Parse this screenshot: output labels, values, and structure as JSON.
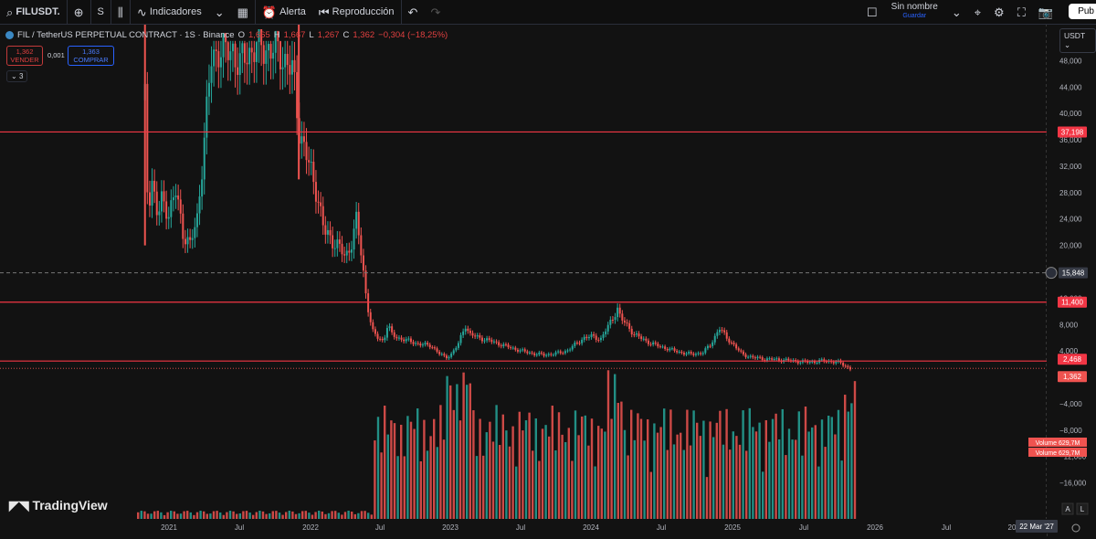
{
  "toolbar": {
    "symbol": "FILUSDT.",
    "interval": "S",
    "indicators_label": "Indicadores",
    "alert_label": "Alerta",
    "replay_label": "Reproducción",
    "layout_name": "Sin nombre",
    "layout_save": "Guardar",
    "publish_label": "Pub"
  },
  "legend": {
    "title": "FIL / TetherUS PERPETUAL CONTRACT · 1S · Binance",
    "o_key": "O",
    "o_val": "1,665",
    "h_key": "H",
    "h_val": "1,667",
    "l_key": "L",
    "l_val": "1,267",
    "c_key": "C",
    "c_val": "1,362",
    "change": "−0,304 (−18,25%)"
  },
  "trade": {
    "sell_price": "1,362",
    "sell_label": "VENDER",
    "spread": "0,001",
    "buy_price": "1,363",
    "buy_label": "COMPRAR",
    "collapsed_count": "3"
  },
  "currency": "USDT",
  "brand": "TradingView",
  "colors": {
    "up": "#26a69a",
    "down": "#ef5350",
    "hline": "#f23645",
    "background": "#121212"
  },
  "chart_data": {
    "type": "candlestick",
    "title": "FIL / TetherUS PERPETUAL CONTRACT · 1S · Binance",
    "x_tick_labels": [
      "2021",
      "Jul",
      "2022",
      "Jul",
      "2023",
      "Jul",
      "2024",
      "Jul",
      "2025",
      "Jul",
      "2026",
      "Jul",
      "20"
    ],
    "y_tick_labels": [
      "48,000",
      "44,000",
      "40,000",
      "36,000",
      "32,000",
      "28,000",
      "24,000",
      "20,000",
      "16,000",
      "12,000",
      "8,000",
      "4,000",
      "0,000",
      "−4,000",
      "−8,000",
      "−12,000",
      "−16,000"
    ],
    "ylim": [
      -18,
      50
    ],
    "horizontal_lines": [
      37.198,
      11.4,
      2.468
    ],
    "crosshair_price": "15,848",
    "crosshair_date": "22 Mar '27",
    "price_labels": {
      "l1": "37,198",
      "l2": "11,400",
      "l3": "2,468",
      "last": "1,362"
    },
    "volume_labels": [
      "Volume  629,7M",
      "Volume  629,7M"
    ],
    "scale_buttons": [
      "A",
      "L"
    ],
    "price_path": [
      [
        2020.83,
        42
      ],
      [
        2020.85,
        26
      ],
      [
        2020.88,
        30
      ],
      [
        2020.92,
        24
      ],
      [
        2020.95,
        27
      ],
      [
        2021.0,
        25
      ],
      [
        2021.05,
        28
      ],
      [
        2021.1,
        22
      ],
      [
        2021.15,
        20
      ],
      [
        2021.2,
        24
      ],
      [
        2021.25,
        36
      ],
      [
        2021.3,
        48
      ],
      [
        2021.35,
        50
      ],
      [
        2021.4,
        49
      ],
      [
        2021.45,
        50
      ],
      [
        2021.5,
        47
      ],
      [
        2021.55,
        49
      ],
      [
        2021.6,
        50
      ],
      [
        2021.7,
        50
      ],
      [
        2021.8,
        49
      ],
      [
        2021.88,
        46
      ],
      [
        2021.92,
        38
      ],
      [
        2021.98,
        33
      ],
      [
        2022.05,
        28
      ],
      [
        2022.1,
        22
      ],
      [
        2022.15,
        21
      ],
      [
        2022.2,
        20
      ],
      [
        2022.25,
        18
      ],
      [
        2022.3,
        21
      ],
      [
        2022.33,
        24
      ],
      [
        2022.36,
        19
      ],
      [
        2022.4,
        12
      ],
      [
        2022.44,
        7
      ],
      [
        2022.48,
        6
      ],
      [
        2022.52,
        5.5
      ],
      [
        2022.55,
        8
      ],
      [
        2022.58,
        6.5
      ],
      [
        2022.62,
        6
      ],
      [
        2022.7,
        5.5
      ],
      [
        2022.78,
        5
      ],
      [
        2022.86,
        4.8
      ],
      [
        2022.92,
        3.5
      ],
      [
        2022.96,
        3
      ],
      [
        2023.0,
        3.5
      ],
      [
        2023.05,
        5
      ],
      [
        2023.1,
        8
      ],
      [
        2023.13,
        6.5
      ],
      [
        2023.2,
        6
      ],
      [
        2023.28,
        5.5
      ],
      [
        2023.35,
        5
      ],
      [
        2023.42,
        4.5
      ],
      [
        2023.5,
        4
      ],
      [
        2023.58,
        3.6
      ],
      [
        2023.66,
        3.4
      ],
      [
        2023.74,
        3.6
      ],
      [
        2023.82,
        4
      ],
      [
        2023.88,
        5
      ],
      [
        2023.94,
        6
      ],
      [
        2024.0,
        6.2
      ],
      [
        2024.06,
        5.8
      ],
      [
        2024.12,
        8
      ],
      [
        2024.18,
        10.5
      ],
      [
        2024.2,
        9
      ],
      [
        2024.24,
        8
      ],
      [
        2024.3,
        6.5
      ],
      [
        2024.38,
        5.5
      ],
      [
        2024.46,
        4.8
      ],
      [
        2024.54,
        4.3
      ],
      [
        2024.62,
        3.8
      ],
      [
        2024.7,
        3.5
      ],
      [
        2024.78,
        3.7
      ],
      [
        2024.84,
        5
      ],
      [
        2024.9,
        7.5
      ],
      [
        2024.95,
        6
      ],
      [
        2025.0,
        5
      ],
      [
        2025.06,
        3.5
      ],
      [
        2025.14,
        3
      ],
      [
        2025.22,
        2.8
      ],
      [
        2025.3,
        2.7
      ],
      [
        2025.38,
        2.6
      ],
      [
        2025.46,
        2.4
      ],
      [
        2025.54,
        2.3
      ],
      [
        2025.62,
        2.5
      ],
      [
        2025.7,
        2.4
      ],
      [
        2025.76,
        2.2
      ],
      [
        2025.8,
        1.6
      ],
      [
        2025.83,
        1.36
      ]
    ]
  }
}
